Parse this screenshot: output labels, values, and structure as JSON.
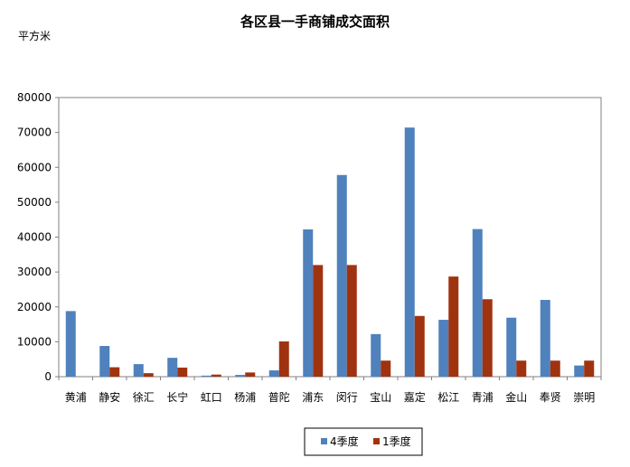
{
  "chart_data": {
    "type": "bar",
    "title": "各区县一手商铺成交面积",
    "ylabel": "平方米",
    "xlabel": "",
    "ylim": [
      0,
      80000
    ],
    "yticks": [
      0,
      10000,
      20000,
      30000,
      40000,
      50000,
      60000,
      70000,
      80000
    ],
    "grid": false,
    "legend_position": "bottom",
    "categories": [
      "黄浦",
      "静安",
      "徐汇",
      "长宁",
      "虹口",
      "杨浦",
      "普陀",
      "浦东",
      "闵行",
      "宝山",
      "嘉定",
      "松江",
      "青浦",
      "金山",
      "奉贤",
      "崇明"
    ],
    "series": [
      {
        "name": "4季度",
        "color": "#4f81bd",
        "values": [
          18800,
          8800,
          3600,
          5400,
          300,
          500,
          1800,
          42200,
          57800,
          12200,
          71400,
          16300,
          42300,
          16900,
          22000,
          3200
        ]
      },
      {
        "name": "1季度",
        "color": "#a0330f",
        "values": [
          0,
          2700,
          1000,
          2600,
          600,
          1200,
          10100,
          32000,
          32000,
          4600,
          17400,
          28700,
          22200,
          4600,
          4600,
          4600
        ]
      }
    ]
  }
}
